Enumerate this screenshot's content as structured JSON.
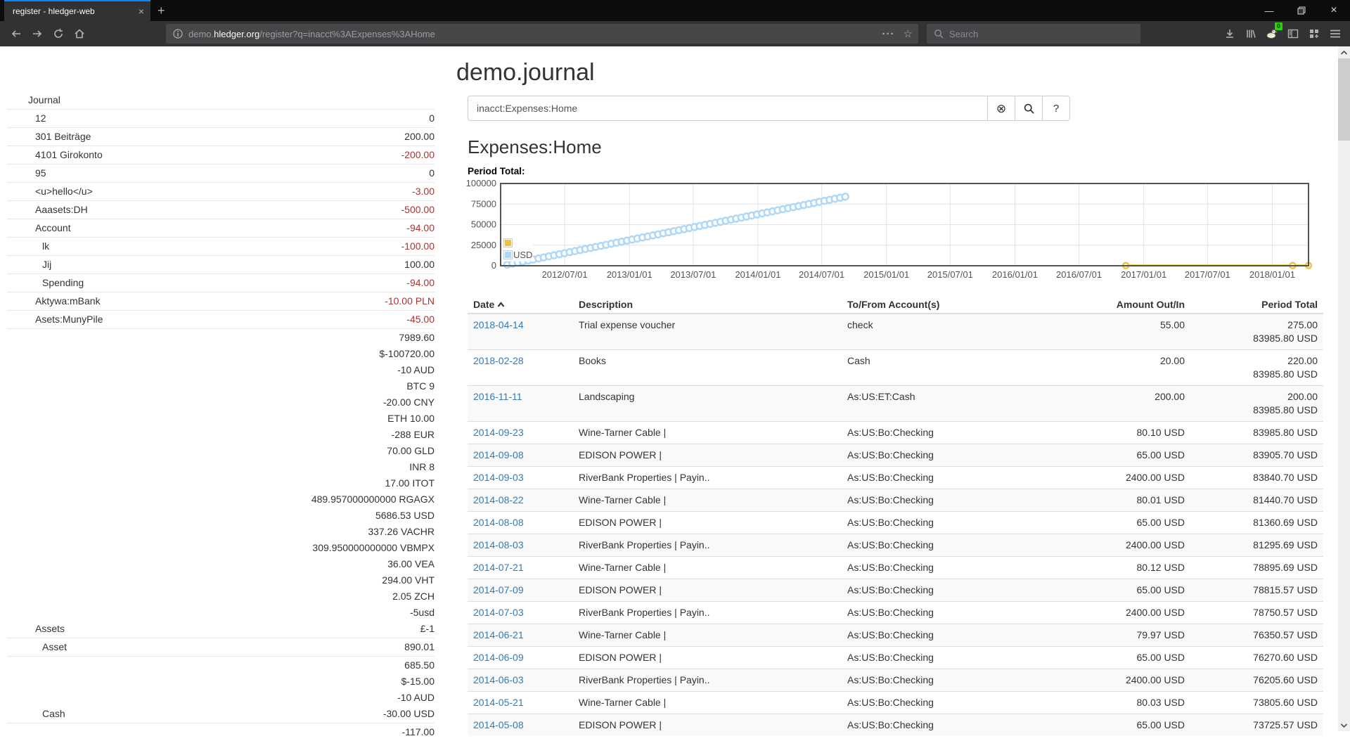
{
  "browser": {
    "tab_title": "register - hledger-web",
    "close_glyph": "×",
    "new_tab_glyph": "+",
    "minimize_glyph": "—",
    "url_prefix": "demo.",
    "url_domain": "hledger.org",
    "url_path": "/register?q=inacct%3AExpenses%3AHome",
    "url_dots": "···",
    "url_star": "☆",
    "search_placeholder": "Search",
    "extension_badge": "0"
  },
  "page": {
    "title": "demo.journal",
    "query_value": "inacct:Expenses:Home",
    "clear_glyph": "⊗",
    "help_glyph": "?",
    "heading": "Expenses:Home"
  },
  "sidebar": {
    "rows": [
      {
        "label": "Journal",
        "indent": 0,
        "lines": []
      },
      {
        "label": "12",
        "indent": 1,
        "lines": [
          "0"
        ]
      },
      {
        "label": "301 Beiträge",
        "indent": 1,
        "lines": [
          "200.00"
        ]
      },
      {
        "label": "4101 Girokonto",
        "indent": 1,
        "neg": true,
        "lines": [
          "-200.00"
        ]
      },
      {
        "label": "95",
        "indent": 1,
        "lines": [
          "0"
        ]
      },
      {
        "label": "<u>hello</u>",
        "indent": 1,
        "neg": true,
        "lines": [
          "-3.00"
        ]
      },
      {
        "label": "Aaasets:DH",
        "indent": 1,
        "neg": true,
        "lines": [
          "-500.00"
        ]
      },
      {
        "label": "Account",
        "indent": 1,
        "neg": true,
        "lines": [
          "-94.00"
        ]
      },
      {
        "label": "lk",
        "indent": 2,
        "neg": true,
        "lines": [
          "-100.00"
        ]
      },
      {
        "label": "Jij",
        "indent": 2,
        "lines": [
          "100.00"
        ]
      },
      {
        "label": "Spending",
        "indent": 2,
        "neg": true,
        "lines": [
          "-94.00"
        ]
      },
      {
        "label": "Aktywa:mBank",
        "indent": 1,
        "neg": true,
        "lines": [
          "-10.00 PLN"
        ]
      },
      {
        "label": "Asets:MunyPile",
        "indent": 1,
        "neg": true,
        "lines": [
          "-45.00"
        ]
      },
      {
        "label": "Assets",
        "indent": 1,
        "lines": [
          "7989.60",
          "$-100720.00",
          "-10 AUD",
          "BTC 9",
          "-20.00 CNY",
          "ETH 10.00",
          "-288 EUR",
          "70.00 GLD",
          "INR 8",
          "17.00 ITOT",
          "489.957000000000 RGAGX",
          "5686.53 USD",
          "337.26 VACHR",
          "309.950000000000 VBMPX",
          "36.00 VEA",
          "294.00 VHT",
          "2.05 ZCH",
          "-5usd",
          "£-1"
        ]
      },
      {
        "label": "Asset",
        "indent": 2,
        "lines": [
          "890.01"
        ]
      },
      {
        "label": "Cash",
        "indent": 2,
        "lines": [
          "685.50",
          "$-15.00",
          "-10 AUD",
          "-30.00 USD"
        ]
      },
      {
        "label": "",
        "indent": 2,
        "lines": [
          "-117.00"
        ]
      }
    ]
  },
  "register": {
    "columns": [
      "Date",
      "Description",
      "To/From Account(s)",
      "Amount Out/In",
      "Period Total"
    ],
    "rows": [
      {
        "date": "2018-04-14",
        "desc": "Trial expense voucher",
        "acct": "check",
        "amount": "55.00",
        "totals": [
          "275.00",
          "83985.80 USD"
        ]
      },
      {
        "date": "2018-02-28",
        "desc": "Books",
        "acct": "Cash",
        "amount": "20.00",
        "totals": [
          "220.00",
          "83985.80 USD"
        ]
      },
      {
        "date": "2016-11-11",
        "desc": "Landscaping",
        "acct": "As:US:ET:Cash",
        "amount": "200.00",
        "totals": [
          "200.00",
          "83985.80 USD"
        ]
      },
      {
        "date": "2014-09-23",
        "desc": "Wine-Tarner Cable |",
        "acct": "As:US:Bo:Checking",
        "amount": "80.10 USD",
        "totals": [
          "83985.80 USD"
        ]
      },
      {
        "date": "2014-09-08",
        "desc": "EDISON POWER |",
        "acct": "As:US:Bo:Checking",
        "amount": "65.00 USD",
        "totals": [
          "83905.70 USD"
        ]
      },
      {
        "date": "2014-09-03",
        "desc": "RiverBank Properties | Payin..",
        "acct": "As:US:Bo:Checking",
        "amount": "2400.00 USD",
        "totals": [
          "83840.70 USD"
        ]
      },
      {
        "date": "2014-08-22",
        "desc": "Wine-Tarner Cable |",
        "acct": "As:US:Bo:Checking",
        "amount": "80.01 USD",
        "totals": [
          "81440.70 USD"
        ]
      },
      {
        "date": "2014-08-08",
        "desc": "EDISON POWER |",
        "acct": "As:US:Bo:Checking",
        "amount": "65.00 USD",
        "totals": [
          "81360.69 USD"
        ]
      },
      {
        "date": "2014-08-03",
        "desc": "RiverBank Properties | Payin..",
        "acct": "As:US:Bo:Checking",
        "amount": "2400.00 USD",
        "totals": [
          "81295.69 USD"
        ]
      },
      {
        "date": "2014-07-21",
        "desc": "Wine-Tarner Cable |",
        "acct": "As:US:Bo:Checking",
        "amount": "80.12 USD",
        "totals": [
          "78895.69 USD"
        ]
      },
      {
        "date": "2014-07-09",
        "desc": "EDISON POWER |",
        "acct": "As:US:Bo:Checking",
        "amount": "65.00 USD",
        "totals": [
          "78815.57 USD"
        ]
      },
      {
        "date": "2014-07-03",
        "desc": "RiverBank Properties | Payin..",
        "acct": "As:US:Bo:Checking",
        "amount": "2400.00 USD",
        "totals": [
          "78750.57 USD"
        ]
      },
      {
        "date": "2014-06-21",
        "desc": "Wine-Tarner Cable |",
        "acct": "As:US:Bo:Checking",
        "amount": "79.97 USD",
        "totals": [
          "76350.57 USD"
        ]
      },
      {
        "date": "2014-06-09",
        "desc": "EDISON POWER |",
        "acct": "As:US:Bo:Checking",
        "amount": "65.00 USD",
        "totals": [
          "76270.60 USD"
        ]
      },
      {
        "date": "2014-06-03",
        "desc": "RiverBank Properties | Payin..",
        "acct": "As:US:Bo:Checking",
        "amount": "2400.00 USD",
        "totals": [
          "76205.60 USD"
        ]
      },
      {
        "date": "2014-05-21",
        "desc": "Wine-Tarner Cable |",
        "acct": "As:US:Bo:Checking",
        "amount": "80.03 USD",
        "totals": [
          "73805.60 USD"
        ]
      },
      {
        "date": "2014-05-08",
        "desc": "EDISON POWER |",
        "acct": "As:US:Bo:Checking",
        "amount": "65.00 USD",
        "totals": [
          "73725.57 USD"
        ]
      }
    ]
  },
  "chart_data": {
    "type": "line",
    "title": "Period Total:",
    "x_axis": {
      "epoch": "2012-01-01",
      "min_day": 0,
      "max_day": 2295,
      "ticks": [
        {
          "day": 182,
          "label": "2012/07/01"
        },
        {
          "day": 366,
          "label": "2013/01/01"
        },
        {
          "day": 547,
          "label": "2013/07/01"
        },
        {
          "day": 731,
          "label": "2014/01/01"
        },
        {
          "day": 912,
          "label": "2014/07/01"
        },
        {
          "day": 1096,
          "label": "2015/01/01"
        },
        {
          "day": 1277,
          "label": "2015/07/01"
        },
        {
          "day": 1461,
          "label": "2016/01/01"
        },
        {
          "day": 1643,
          "label": "2016/07/01"
        },
        {
          "day": 1827,
          "label": "2017/01/01"
        },
        {
          "day": 2008,
          "label": "2017/07/01"
        },
        {
          "day": 2192,
          "label": "2018/01/01"
        }
      ]
    },
    "y_axis": {
      "min": 0,
      "max": 100000,
      "ticks": [
        {
          "v": 0,
          "label": "0"
        },
        {
          "v": 25000,
          "label": "25000"
        },
        {
          "v": 50000,
          "label": "50000"
        },
        {
          "v": 75000,
          "label": "75000"
        },
        {
          "v": 100000,
          "label": "100000"
        }
      ]
    },
    "legend": [
      {
        "label": "",
        "color": "#edc240"
      },
      {
        "label": "USD",
        "color": "#afd8f8"
      }
    ],
    "series": [
      {
        "name": "",
        "color": "#edc240",
        "style": "line-points",
        "points": [
          [
            1776,
            200
          ],
          [
            2250,
            220
          ],
          [
            2295,
            275
          ]
        ]
      },
      {
        "name": "USD",
        "color": "#afd8f8",
        "style": "points",
        "x_start_day": 19,
        "x_step_days": 14.77,
        "values": [
          1273,
          2545,
          3818,
          5090,
          6363,
          7635,
          8908,
          10180,
          11453,
          12725,
          13998,
          15270,
          16543,
          17815,
          19088,
          20360,
          21633,
          22905,
          24178,
          25450,
          26723,
          27995,
          29268,
          30540,
          31813,
          33085,
          34358,
          35630,
          36903,
          38175,
          39448,
          40720,
          41993,
          43265,
          44538,
          45810,
          47083,
          48355,
          49628,
          50900,
          52173,
          53445,
          54718,
          55990,
          57263,
          58535,
          59808,
          61080,
          62353,
          63625,
          64898,
          66170,
          67443,
          68715,
          69988,
          71260,
          72533,
          73805,
          75078,
          76350,
          77623,
          78895,
          80168,
          81440,
          82713,
          83985.8
        ]
      }
    ],
    "grid": {
      "border_color": "#545454",
      "grid_color": "#e3e3e3",
      "text_color": "#545454"
    }
  },
  "colors": {
    "link": "#337ab7",
    "negative": "#aa3333",
    "stripe": "#f9f9f9",
    "accent_blue_stripe": "#0a84ff"
  }
}
